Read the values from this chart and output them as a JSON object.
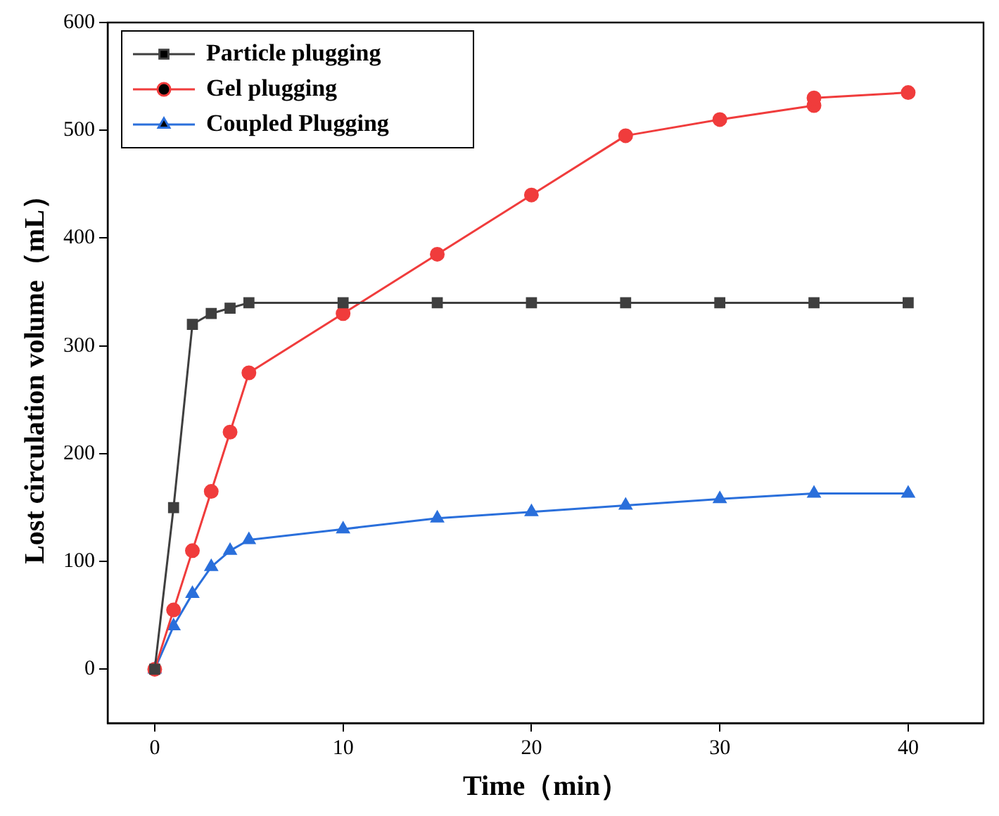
{
  "chart_data": {
    "type": "line",
    "xlabel": "Time（min）",
    "ylabel": "Lost circulation volume（mL）",
    "xlim": [
      -2.5,
      44
    ],
    "xticks": [
      0,
      10,
      20,
      30,
      40
    ],
    "ylim": [
      -50,
      600
    ],
    "yticks": [
      0,
      100,
      200,
      300,
      400,
      500,
      600
    ],
    "grid": false,
    "legend": "top left",
    "series": [
      {
        "name": "Particle plugging",
        "color": "#3f3f3f",
        "marker": "square",
        "x": [
          0,
          1,
          2,
          3,
          4,
          5,
          10,
          15,
          20,
          25,
          30,
          35,
          40
        ],
        "values": [
          0,
          150,
          320,
          330,
          335,
          340,
          340,
          340,
          340,
          340,
          340,
          340,
          340
        ]
      },
      {
        "name": "Gel plugging",
        "color": "#f03c3c",
        "marker": "circle",
        "x": [
          0,
          1,
          2,
          3,
          4,
          5,
          10,
          15,
          20,
          25,
          30,
          35,
          35,
          40
        ],
        "values": [
          0,
          55,
          110,
          165,
          220,
          275,
          330,
          385,
          440,
          495,
          510,
          523,
          530,
          535
        ]
      },
      {
        "name": "Coupled Plugging",
        "color": "#2a6fdb",
        "marker": "triangle",
        "x": [
          0,
          1,
          2,
          3,
          4,
          5,
          10,
          15,
          20,
          25,
          30,
          35,
          40
        ],
        "values": [
          0,
          40,
          70,
          95,
          110,
          120,
          130,
          140,
          146,
          152,
          158,
          163,
          163
        ]
      }
    ]
  }
}
